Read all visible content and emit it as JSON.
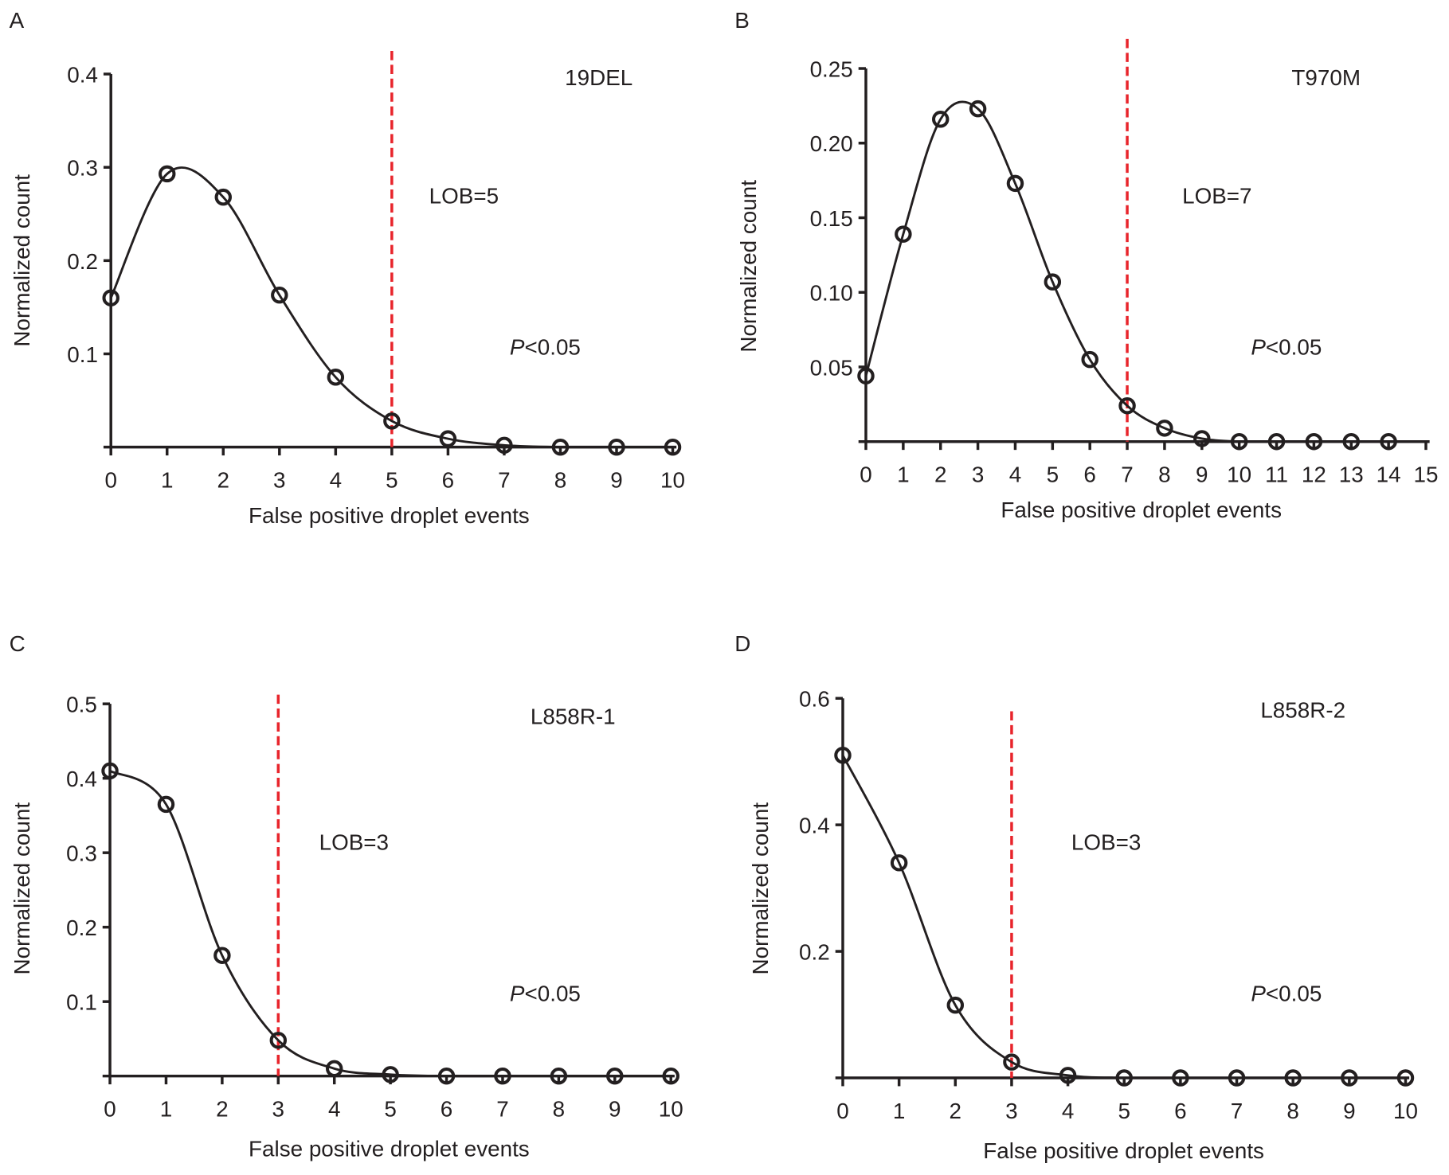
{
  "chart_data": [
    {
      "type": "line",
      "panel": "A",
      "title": "19DEL",
      "xlabel": "False positive droplet events",
      "ylabel": "Normalized count",
      "x": [
        0,
        1,
        2,
        3,
        4,
        5,
        6,
        7,
        8,
        9,
        10
      ],
      "values": [
        0.16,
        0.293,
        0.268,
        0.163,
        0.075,
        0.028,
        0.009,
        0.002,
        0.0,
        0.0,
        0.0
      ],
      "xlim": [
        0,
        10
      ],
      "ylim": [
        0,
        0.4
      ],
      "yticks": [
        "0.1",
        "0.2",
        "0.3",
        "0.4"
      ],
      "yticks_values": [
        0.1,
        0.2,
        0.3,
        0.4
      ],
      "xticks": [
        "0",
        "1",
        "2",
        "3",
        "4",
        "5",
        "6",
        "7",
        "8",
        "9",
        "10"
      ],
      "lob_x": 5,
      "lob_label": "LOB=5",
      "p_label_italic": "P",
      "p_label_rest": "<0.05",
      "lob_color": "#e8242b"
    },
    {
      "type": "line",
      "panel": "B",
      "title": "T970M",
      "xlabel": "False positive droplet events",
      "ylabel": "Normalized count",
      "x": [
        0,
        1,
        2,
        3,
        4,
        5,
        6,
        7,
        8,
        9,
        10,
        11,
        12,
        13,
        14
      ],
      "values": [
        0.044,
        0.139,
        0.216,
        0.223,
        0.173,
        0.107,
        0.055,
        0.024,
        0.009,
        0.002,
        0.0,
        0.0,
        0.0,
        0.0,
        0.0
      ],
      "xlim": [
        0,
        15
      ],
      "ylim": [
        0,
        0.25
      ],
      "yticks": [
        "0.05",
        "0.10",
        "0.15",
        "0.20",
        "0.25"
      ],
      "yticks_values": [
        0.05,
        0.1,
        0.15,
        0.2,
        0.25
      ],
      "xticks": [
        "0",
        "1",
        "2",
        "3",
        "4",
        "5",
        "6",
        "7",
        "8",
        "9",
        "10",
        "11",
        "12",
        "13",
        "14",
        "15"
      ],
      "lob_x": 7,
      "lob_label": "LOB=7",
      "p_label_italic": "P",
      "p_label_rest": "<0.05",
      "lob_color": "#e8242b"
    },
    {
      "type": "line",
      "panel": "C",
      "title": "L858R-1",
      "xlabel": "False positive droplet events",
      "ylabel": "Normalized count",
      "x": [
        0,
        1,
        2,
        3,
        4,
        5,
        6,
        7,
        8,
        9,
        10
      ],
      "values": [
        0.41,
        0.365,
        0.162,
        0.048,
        0.01,
        0.002,
        0.0,
        0.0,
        0.0,
        0.0,
        0.0
      ],
      "xlim": [
        0,
        10
      ],
      "ylim": [
        0,
        0.5
      ],
      "yticks": [
        "0.1",
        "0.2",
        "0.3",
        "0.4",
        "0.5"
      ],
      "yticks_values": [
        0.1,
        0.2,
        0.3,
        0.4,
        0.5
      ],
      "xticks": [
        "0",
        "1",
        "2",
        "3",
        "4",
        "5",
        "6",
        "7",
        "8",
        "9",
        "10"
      ],
      "lob_x": 3,
      "lob_label": "LOB=3",
      "p_label_italic": "P",
      "p_label_rest": "<0.05",
      "lob_color": "#e8242b"
    },
    {
      "type": "line",
      "panel": "D",
      "title": "L858R-2",
      "xlabel": "False positive droplet events",
      "ylabel": "Normalized count",
      "x": [
        0,
        1,
        2,
        3,
        4,
        5,
        6,
        7,
        8,
        9,
        10
      ],
      "values": [
        0.51,
        0.34,
        0.115,
        0.025,
        0.004,
        0.0,
        0.0,
        0.0,
        0.0,
        0.0,
        0.0
      ],
      "xlim": [
        0,
        10
      ],
      "ylim": [
        0,
        0.6
      ],
      "yticks": [
        "0.2",
        "0.4",
        "0.6"
      ],
      "yticks_values": [
        0.2,
        0.4,
        0.6
      ],
      "xticks": [
        "0",
        "1",
        "2",
        "3",
        "4",
        "5",
        "6",
        "7",
        "8",
        "9",
        "10"
      ],
      "lob_x": 3,
      "lob_label": "LOB=3",
      "p_label_italic": "P",
      "p_label_rest": "<0.05",
      "lob_color": "#e8242b"
    }
  ]
}
